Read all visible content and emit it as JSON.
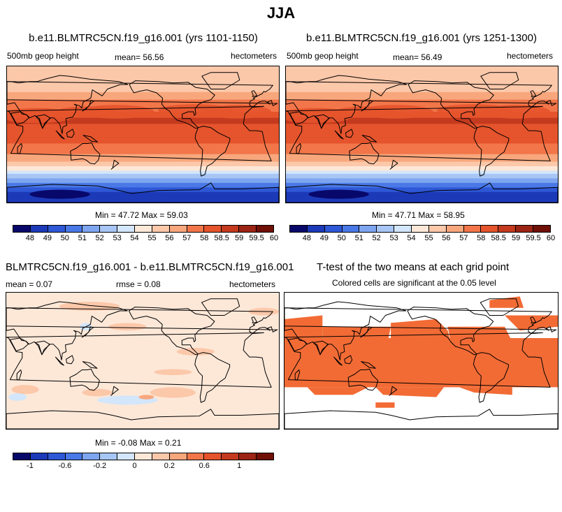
{
  "page": {
    "title": "JJA"
  },
  "palette": {
    "abs": [
      "#08086b",
      "#1c3ab8",
      "#2e58d6",
      "#4a78e6",
      "#7ea6f0",
      "#a7c6f5",
      "#d3e6fb",
      "#fde8d8",
      "#fcc8aa",
      "#f8a77d",
      "#f2764a",
      "#e5542c",
      "#c43a1e",
      "#9c2414",
      "#701007"
    ],
    "diff": [
      "#08086b",
      "#1c3ab8",
      "#2e58d6",
      "#4a78e6",
      "#7ea6f0",
      "#a7c6f5",
      "#d3e6fb",
      "#fde8d8",
      "#fcc8aa",
      "#f8a77d",
      "#f2764a",
      "#e5542c",
      "#c43a1e",
      "#9c2414",
      "#701007"
    ],
    "ttest": "#f26b35"
  },
  "panels": {
    "p1": {
      "title": "b.e11.BLMTRC5CN.f19_g16.001 (yrs 1101-1150)",
      "left_label": "500mb geop height",
      "mean_text": "mean=  56.56",
      "units": "hectometers",
      "minmax": "Min =  47.72 Max =  59.03"
    },
    "p2": {
      "title": "b.e11.BLMTRC5CN.f19_g16.001 (yrs 1251-1300)",
      "left_label": "500mb geop height",
      "mean_text": "mean=  56.49",
      "units": "hectometers",
      "minmax": "Min =  47.71 Max =  58.95"
    },
    "p3": {
      "title": "BLMTRC5CN.f19_g16.001 - b.e11.BLMTRC5CN.f19_g16.001",
      "mean_text": "mean =  0.07",
      "rmse_text": "rmse =  0.08",
      "units": "hectometers",
      "minmax": "Min = -0.08 Max =  0.21"
    },
    "p4": {
      "title": "T-test of the two means at each grid point",
      "subtitle": "Colored cells are significant at the 0.05 level"
    }
  },
  "colorbars": {
    "abs_ticks": [
      "48",
      "49",
      "50",
      "51",
      "52",
      "53",
      "54",
      "55",
      "56",
      "57",
      "58",
      "58.5",
      "59",
      "59.5",
      "60"
    ],
    "diff_ticks": [
      "-1",
      "-0.6",
      "-0.2",
      "0",
      "0.2",
      "0.6",
      "1"
    ]
  },
  "chart_data": [
    {
      "type": "heatmap",
      "title": "b.e11.BLMTRC5CN.f19_g16.001 (yrs 1101-1150)",
      "variable": "500mb geop height",
      "units": "hectometers",
      "season": "JJA",
      "mean": 56.56,
      "min": 47.72,
      "max": 59.03,
      "levels": [
        48,
        49,
        50,
        51,
        52,
        53,
        54,
        55,
        56,
        57,
        58,
        58.5,
        59,
        59.5,
        60
      ],
      "latitude_bands": [
        {
          "lat": 80,
          "value": 55.2
        },
        {
          "lat": 60,
          "value": 55.6
        },
        {
          "lat": 40,
          "value": 57.5
        },
        {
          "lat": 20,
          "value": 58.6
        },
        {
          "lat": 0,
          "value": 58.3
        },
        {
          "lat": -20,
          "value": 57.8
        },
        {
          "lat": -40,
          "value": 55.5
        },
        {
          "lat": -60,
          "value": 51.5
        },
        {
          "lat": -80,
          "value": 48.5
        }
      ]
    },
    {
      "type": "heatmap",
      "title": "b.e11.BLMTRC5CN.f19_g16.001 (yrs 1251-1300)",
      "variable": "500mb geop height",
      "units": "hectometers",
      "season": "JJA",
      "mean": 56.49,
      "min": 47.71,
      "max": 58.95,
      "levels": [
        48,
        49,
        50,
        51,
        52,
        53,
        54,
        55,
        56,
        57,
        58,
        58.5,
        59,
        59.5,
        60
      ],
      "latitude_bands": [
        {
          "lat": 80,
          "value": 55.2
        },
        {
          "lat": 60,
          "value": 55.6
        },
        {
          "lat": 40,
          "value": 57.5
        },
        {
          "lat": 20,
          "value": 58.6
        },
        {
          "lat": 0,
          "value": 58.3
        },
        {
          "lat": -20,
          "value": 57.8
        },
        {
          "lat": -40,
          "value": 55.5
        },
        {
          "lat": -60,
          "value": 51.5
        },
        {
          "lat": -80,
          "value": 48.5
        }
      ]
    },
    {
      "type": "heatmap",
      "title": "BLMTRC5CN.f19_g16.001 - b.e11.BLMTRC5CN.f19_g16.001",
      "units": "hectometers",
      "mean": 0.07,
      "rmse": 0.08,
      "min": -0.08,
      "max": 0.21,
      "levels": [
        -1,
        -0.6,
        -0.2,
        0,
        0.2,
        0.6,
        1
      ]
    },
    {
      "type": "heatmap",
      "title": "T-test of the two means at each grid point",
      "subtitle": "Colored cells are significant at the 0.05 level",
      "significance_level": 0.05
    }
  ]
}
